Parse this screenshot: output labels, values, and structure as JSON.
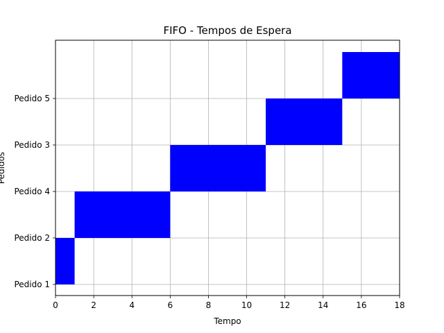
{
  "chart_data": {
    "type": "bar",
    "orientation": "horizontal-gantt",
    "title": "FIFO - Tempos de Espera",
    "xlabel": "Tempo",
    "ylabel": "Pedidos",
    "xlim": [
      0,
      18
    ],
    "x_ticks": [
      "0",
      "2",
      "4",
      "6",
      "8",
      "10",
      "12",
      "14",
      "16",
      "18"
    ],
    "y_ticks": [
      "Pedido 1",
      "Pedido 2",
      "Pedido 4",
      "Pedido 3",
      "Pedido 5"
    ],
    "grid": true,
    "bar_color": "#0000ff",
    "bars": [
      {
        "start": 0,
        "end": 1,
        "y_from": 0,
        "y_to": 1
      },
      {
        "start": 1,
        "end": 6,
        "y_from": 1,
        "y_to": 2
      },
      {
        "start": 6,
        "end": 11,
        "y_from": 2,
        "y_to": 3
      },
      {
        "start": 11,
        "end": 15,
        "y_from": 3,
        "y_to": 4
      },
      {
        "start": 15,
        "end": 18,
        "y_from": 4,
        "y_to": 5
      }
    ]
  }
}
